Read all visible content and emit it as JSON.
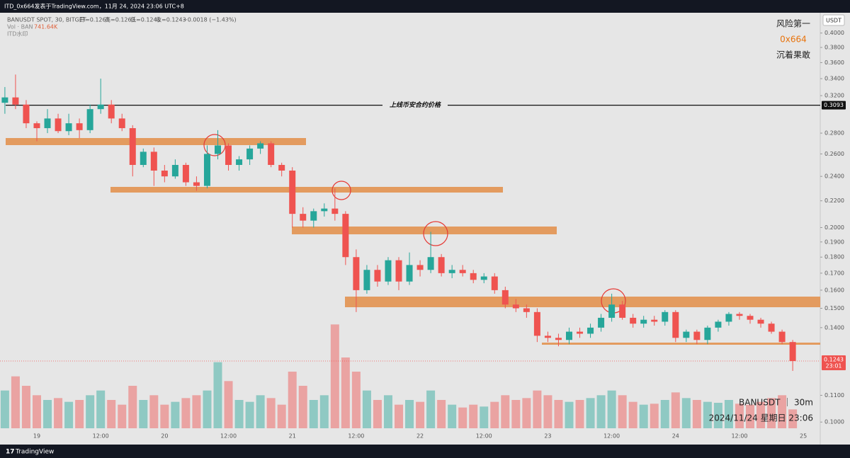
{
  "header": {
    "title": "ITD_0x664发表于TradingView.com，11月 24, 2024 23:06 UTC+8"
  },
  "legend": {
    "symbol": "BANUSDT SPOT, 30, BITGET",
    "ohlc": [
      "开=0.1261",
      "高=0.1263",
      "低=0.1241",
      "收=0.1243"
    ],
    "change": "−0.0018 (−1.43%)",
    "volume_label": "Vol · BAN",
    "volume_value": "741.64K",
    "indicator": "ITD水印"
  },
  "notes": [
    "风险第一",
    "0x664",
    "沉着果敢"
  ],
  "watermark": [
    "BANUSDT ｜ 30m",
    "2024/11/24 星期日 23:06"
  ],
  "footer": "TradingView",
  "chart_data": {
    "type": "candlestick",
    "currency": "USDT",
    "log_scale": true,
    "grid": false,
    "up_color": "#26a69a",
    "down_color": "#ef5350",
    "categories": [
      null,
      null,
      null,
      "19",
      null,
      null,
      null,
      null,
      null,
      "12:00",
      null,
      null,
      null,
      null,
      null,
      "20",
      null,
      null,
      null,
      null,
      null,
      "12:00",
      null,
      null,
      null,
      null,
      null,
      "21",
      null,
      null,
      null,
      null,
      null,
      "12:00",
      null,
      null,
      null,
      null,
      null,
      "22",
      null,
      null,
      null,
      null,
      null,
      "12:00",
      null,
      null,
      null,
      null,
      null,
      "23",
      null,
      null,
      null,
      null,
      null,
      "12:00",
      null,
      null,
      null,
      null,
      null,
      "24",
      null,
      null,
      null,
      null,
      null,
      "12:00",
      null,
      null,
      null,
      null,
      null,
      "25"
    ],
    "open": [
      0.312,
      0.318,
      0.31,
      0.29,
      0.285,
      0.295,
      0.282,
      0.29,
      0.283,
      0.305,
      0.31,
      0.295,
      0.285,
      0.25,
      0.262,
      0.245,
      0.24,
      0.25,
      0.235,
      0.232,
      0.26,
      0.268,
      0.25,
      0.255,
      0.265,
      0.27,
      0.25,
      0.245,
      0.21,
      0.205,
      0.212,
      0.214,
      0.21,
      0.18,
      0.16,
      0.172,
      0.165,
      0.178,
      0.165,
      0.175,
      0.172,
      0.18,
      0.17,
      0.172,
      0.17,
      0.166,
      0.168,
      0.16,
      0.152,
      0.15,
      0.148,
      0.136,
      0.135,
      0.134,
      0.138,
      0.137,
      0.14,
      0.145,
      0.152,
      0.145,
      0.142,
      0.144,
      0.143,
      0.148,
      0.135,
      0.138,
      0.134,
      0.14,
      0.143,
      0.147,
      0.146,
      0.144,
      0.142,
      0.138,
      0.133,
      null
    ],
    "high": [
      0.33,
      0.345,
      0.315,
      0.292,
      0.305,
      0.3,
      0.3,
      0.295,
      0.31,
      0.34,
      0.315,
      0.3,
      0.288,
      0.265,
      0.266,
      0.25,
      0.255,
      0.252,
      0.24,
      0.268,
      0.283,
      0.27,
      0.258,
      0.268,
      0.272,
      0.272,
      0.252,
      0.248,
      0.215,
      0.214,
      0.218,
      0.23,
      0.212,
      0.185,
      0.175,
      0.175,
      0.18,
      0.18,
      0.183,
      0.178,
      0.197,
      0.182,
      0.175,
      0.175,
      0.172,
      0.17,
      0.17,
      0.162,
      0.155,
      0.152,
      0.15,
      0.138,
      0.137,
      0.14,
      0.14,
      0.142,
      0.147,
      0.158,
      0.154,
      0.147,
      0.146,
      0.146,
      0.149,
      0.149,
      0.139,
      0.139,
      0.141,
      0.144,
      0.148,
      0.148,
      0.147,
      0.145,
      0.143,
      0.139,
      0.134,
      null
    ],
    "low": [
      0.3,
      0.305,
      0.285,
      0.272,
      0.28,
      0.28,
      0.278,
      0.275,
      0.28,
      0.3,
      0.29,
      0.282,
      0.24,
      0.248,
      0.232,
      0.235,
      0.238,
      0.232,
      0.228,
      0.23,
      0.255,
      0.245,
      0.245,
      0.25,
      0.26,
      0.248,
      0.24,
      0.2,
      0.2,
      0.2,
      0.208,
      0.205,
      0.175,
      0.148,
      0.158,
      0.162,
      0.163,
      0.16,
      0.163,
      0.168,
      0.17,
      0.168,
      0.167,
      0.168,
      0.164,
      0.164,
      0.158,
      0.15,
      0.148,
      0.145,
      0.133,
      0.133,
      0.131,
      0.132,
      0.135,
      0.135,
      0.138,
      0.143,
      0.144,
      0.14,
      0.14,
      0.141,
      0.141,
      0.133,
      0.133,
      0.132,
      0.132,
      0.138,
      0.141,
      0.144,
      0.142,
      0.14,
      0.137,
      0.132,
      0.12,
      null
    ],
    "close": [
      0.318,
      0.31,
      0.29,
      0.285,
      0.295,
      0.282,
      0.29,
      0.283,
      0.305,
      0.31,
      0.295,
      0.285,
      0.25,
      0.262,
      0.245,
      0.24,
      0.25,
      0.235,
      0.232,
      0.26,
      0.268,
      0.25,
      0.255,
      0.265,
      0.27,
      0.25,
      0.245,
      0.21,
      0.205,
      0.212,
      0.214,
      0.21,
      0.18,
      0.16,
      0.172,
      0.165,
      0.178,
      0.165,
      0.175,
      0.172,
      0.18,
      0.17,
      0.172,
      0.17,
      0.166,
      0.168,
      0.16,
      0.152,
      0.15,
      0.148,
      0.136,
      0.135,
      0.134,
      0.138,
      0.137,
      0.14,
      0.145,
      0.152,
      0.145,
      0.142,
      0.144,
      0.143,
      0.148,
      0.135,
      0.138,
      0.134,
      0.14,
      0.143,
      0.147,
      0.146,
      0.144,
      0.142,
      0.138,
      0.133,
      0.1243,
      null
    ],
    "volume": [
      4000,
      5500,
      4500,
      3500,
      3000,
      3200,
      2800,
      3000,
      3500,
      4000,
      3000,
      2500,
      4500,
      3000,
      3500,
      2500,
      2800,
      3200,
      3500,
      4000,
      7000,
      5000,
      3000,
      2800,
      3500,
      3200,
      2500,
      6000,
      4500,
      3000,
      3500,
      11000,
      7500,
      6000,
      4000,
      3000,
      3500,
      2500,
      3000,
      2800,
      4000,
      3000,
      2500,
      2200,
      2500,
      2300,
      2800,
      3500,
      3000,
      3200,
      4000,
      3500,
      3000,
      2800,
      3000,
      3200,
      3500,
      4000,
      3500,
      2800,
      2500,
      2600,
      3000,
      3800,
      3200,
      3000,
      2800,
      2700,
      3000,
      2600,
      2500,
      2800,
      3200,
      3500,
      2000,
      null
    ],
    "volume_ylim": [
      0,
      12000
    ],
    "ylim": [
      0.093,
      0.43
    ],
    "yticks": [
      {
        "value": 0.4,
        "label": "0.4000"
      },
      {
        "value": 0.38,
        "label": "0.3800"
      },
      {
        "value": 0.36,
        "label": "0.3600"
      },
      {
        "value": 0.34,
        "label": "0.3400"
      },
      {
        "value": 0.32,
        "label": "0.3200"
      },
      {
        "value": 0.28,
        "label": "0.2800"
      },
      {
        "value": 0.26,
        "label": "0.2600"
      },
      {
        "value": 0.24,
        "label": "0.2400"
      },
      {
        "value": 0.22,
        "label": "0.2200"
      },
      {
        "value": 0.2,
        "label": "0.2000"
      },
      {
        "value": 0.19,
        "label": "0.1900"
      },
      {
        "value": 0.18,
        "label": "0.1800"
      },
      {
        "value": 0.17,
        "label": "0.1700"
      },
      {
        "value": 0.16,
        "label": "0.1600"
      },
      {
        "value": 0.15,
        "label": "0.1500"
      },
      {
        "value": 0.14,
        "label": "0.1400"
      },
      {
        "value": 0.11,
        "label": "0.1100"
      },
      {
        "value": 0.1,
        "label": "0.1000"
      }
    ],
    "reference_line": {
      "value": 0.3093,
      "label": "上线币安合约价格"
    },
    "last_price": 0.1243,
    "countdown": "23:01"
  }
}
